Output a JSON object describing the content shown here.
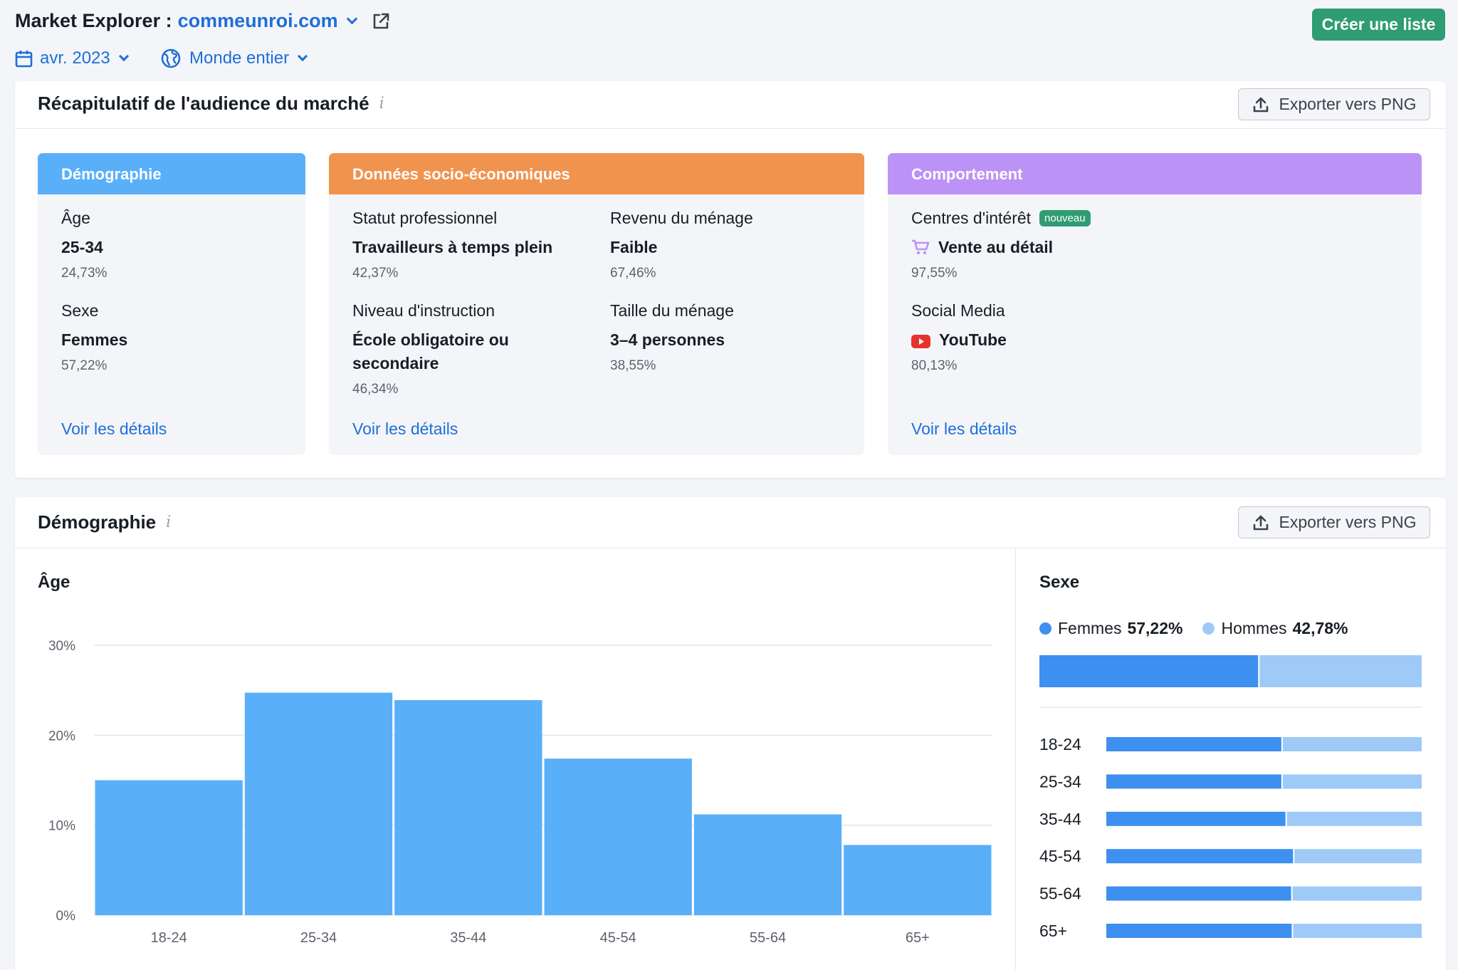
{
  "header": {
    "app_title": "Market Explorer :",
    "domain": "commeunroi.com",
    "create_button": "Créer une liste",
    "date_filter": "avr. 2023",
    "region_filter": "Monde entier"
  },
  "colors": {
    "accent": "#1d6fd8",
    "green": "#2f9c73",
    "demographie": "#5aaff9",
    "socio": "#f0934f",
    "comportement": "#bc92f6",
    "femmes": "#3d8ff0",
    "hommes": "#9fcaf8"
  },
  "summary": {
    "title": "Récapitulatif de l'audience du marché",
    "export_label": "Exporter vers PNG",
    "demographie": {
      "header": "Démographie",
      "age_label": "Âge",
      "age_value": "25-34",
      "age_pct": "24,73%",
      "sexe_label": "Sexe",
      "sexe_value": "Femmes",
      "sexe_pct": "57,22%",
      "link": "Voir les détails"
    },
    "socio": {
      "header": "Données socio-économiques",
      "statut_label": "Statut professionnel",
      "statut_value": "Travailleurs à temps plein",
      "statut_pct": "42,37%",
      "revenu_label": "Revenu du ménage",
      "revenu_value": "Faible",
      "revenu_pct": "67,46%",
      "instruction_label": "Niveau d'instruction",
      "instruction_value": "École obligatoire ou secondaire",
      "instruction_pct": "46,34%",
      "taille_label": "Taille du ménage",
      "taille_value": "3–4 personnes",
      "taille_pct": "38,55%",
      "link": "Voir les détails"
    },
    "comportement": {
      "header": "Comportement",
      "interet_label": "Centres d'intérêt",
      "badge": "nouveau",
      "interet_icon": "shopping-cart-icon",
      "interet_value": "Vente au détail",
      "interet_pct": "97,55%",
      "social_label": "Social Media",
      "social_icon": "youtube-icon",
      "social_value": "YouTube",
      "social_pct": "80,13%",
      "link": "Voir les détails"
    }
  },
  "demographics": {
    "title": "Démographie",
    "export_label": "Exporter vers PNG",
    "age_title": "Âge",
    "sexe_title": "Sexe",
    "legend": {
      "femmes_label": "Femmes",
      "femmes_pct": "57,22%",
      "hommes_label": "Hommes",
      "hommes_pct": "42,78%"
    }
  },
  "chart_data": [
    {
      "type": "bar",
      "title": "Âge",
      "xlabel": "",
      "ylabel": "",
      "categories": [
        "18-24",
        "25-34",
        "35-44",
        "45-54",
        "55-64",
        "65+"
      ],
      "values": [
        15,
        24.73,
        23.9,
        17.4,
        11.2,
        7.8
      ],
      "ylim": [
        0,
        30
      ],
      "yticks": [
        "0%",
        "10%",
        "20%",
        "30%"
      ],
      "grid": true
    },
    {
      "type": "bar",
      "title": "Sexe",
      "stacked": true,
      "orientation": "horizontal",
      "categories": [
        "18-24",
        "25-34",
        "35-44",
        "45-54",
        "55-64",
        "65+"
      ],
      "series": [
        {
          "name": "Femmes",
          "values": [
            55.5,
            55.5,
            56.8,
            59.2,
            58.6,
            58.8
          ]
        },
        {
          "name": "Hommes",
          "values": [
            44.5,
            44.5,
            43.2,
            40.8,
            41.4,
            41.2
          ]
        }
      ],
      "overall": {
        "Femmes": 57.22,
        "Hommes": 42.78
      }
    }
  ]
}
